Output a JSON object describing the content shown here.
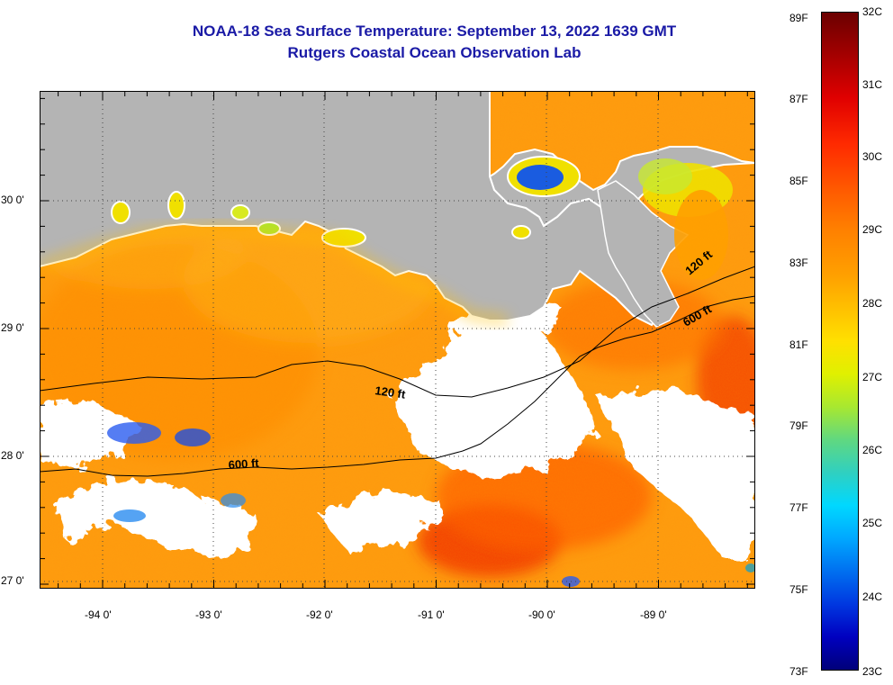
{
  "title_line1": "NOAA-18 Sea Surface Temperature:  September 13, 2022 1639 GMT",
  "title_line2": "Rutgers Coastal Ocean Observation Lab",
  "lat_labels": [
    "30 0'",
    "29 0'",
    "28 0'",
    "27 0'"
  ],
  "lon_labels": [
    "-94 0'",
    "-93 0'",
    "-92 0'",
    "-91 0'",
    "-90 0'",
    "-89 0'"
  ],
  "contour_labels": [
    "120 ft",
    "600 ft",
    "120 ft",
    "600 ft"
  ],
  "colorbar": {
    "f_labels": [
      "89F",
      "87F",
      "85F",
      "83F",
      "81F",
      "79F",
      "77F",
      "75F",
      "73F"
    ],
    "c_labels": [
      "32C",
      "31C",
      "30C",
      "29C",
      "28C",
      "27C",
      "26C",
      "25C",
      "24C",
      "23C"
    ]
  },
  "colors": {
    "land": "#b4b4b4",
    "cloud": "#ffffff",
    "title": "#1a1aa6"
  }
}
